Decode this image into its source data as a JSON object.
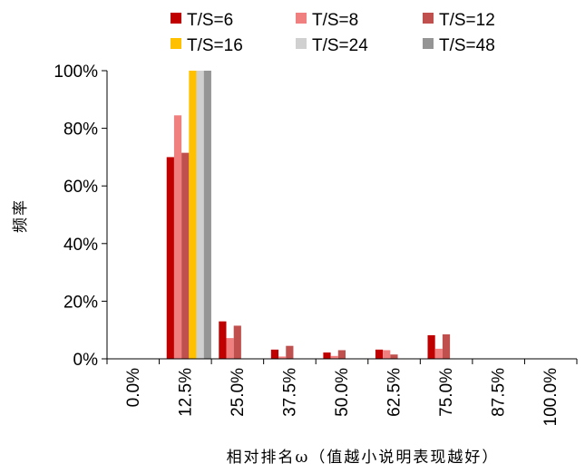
{
  "chart_data": {
    "type": "bar",
    "title": "",
    "xlabel": "相对排名ω（值越小说明表现越好）",
    "ylabel": "频率",
    "categories": [
      "0.0%",
      "12.5%",
      "25.0%",
      "37.5%",
      "50.0%",
      "62.5%",
      "75.0%",
      "87.5%",
      "100.0%"
    ],
    "y_ticks": [
      "0%",
      "20%",
      "40%",
      "60%",
      "80%",
      "100%"
    ],
    "ylim": [
      0,
      100
    ],
    "grid": false,
    "legend_position": "top",
    "series": [
      {
        "name": "T/S=6",
        "color": "#c00000",
        "values": [
          0,
          70.0,
          13.0,
          3.2,
          2.2,
          3.2,
          8.2,
          0,
          0
        ]
      },
      {
        "name": "T/S=8",
        "color": "#f08080",
        "values": [
          0,
          84.5,
          7.2,
          0.8,
          1.0,
          3.0,
          3.5,
          0,
          0
        ]
      },
      {
        "name": "T/S=12",
        "color": "#c0504d",
        "values": [
          0,
          71.5,
          11.5,
          4.5,
          3.0,
          1.5,
          8.5,
          0,
          0
        ]
      },
      {
        "name": "T/S=16",
        "color": "#ffc000",
        "values": [
          0,
          100,
          0,
          0,
          0,
          0,
          0,
          0,
          0
        ]
      },
      {
        "name": "T/S=24",
        "color": "#d0d0d0",
        "values": [
          0,
          100,
          0,
          0,
          0,
          0,
          0,
          0,
          0
        ]
      },
      {
        "name": "T/S=48",
        "color": "#959595",
        "values": [
          0,
          100,
          0,
          0,
          0,
          0,
          0,
          0,
          0
        ]
      }
    ]
  }
}
